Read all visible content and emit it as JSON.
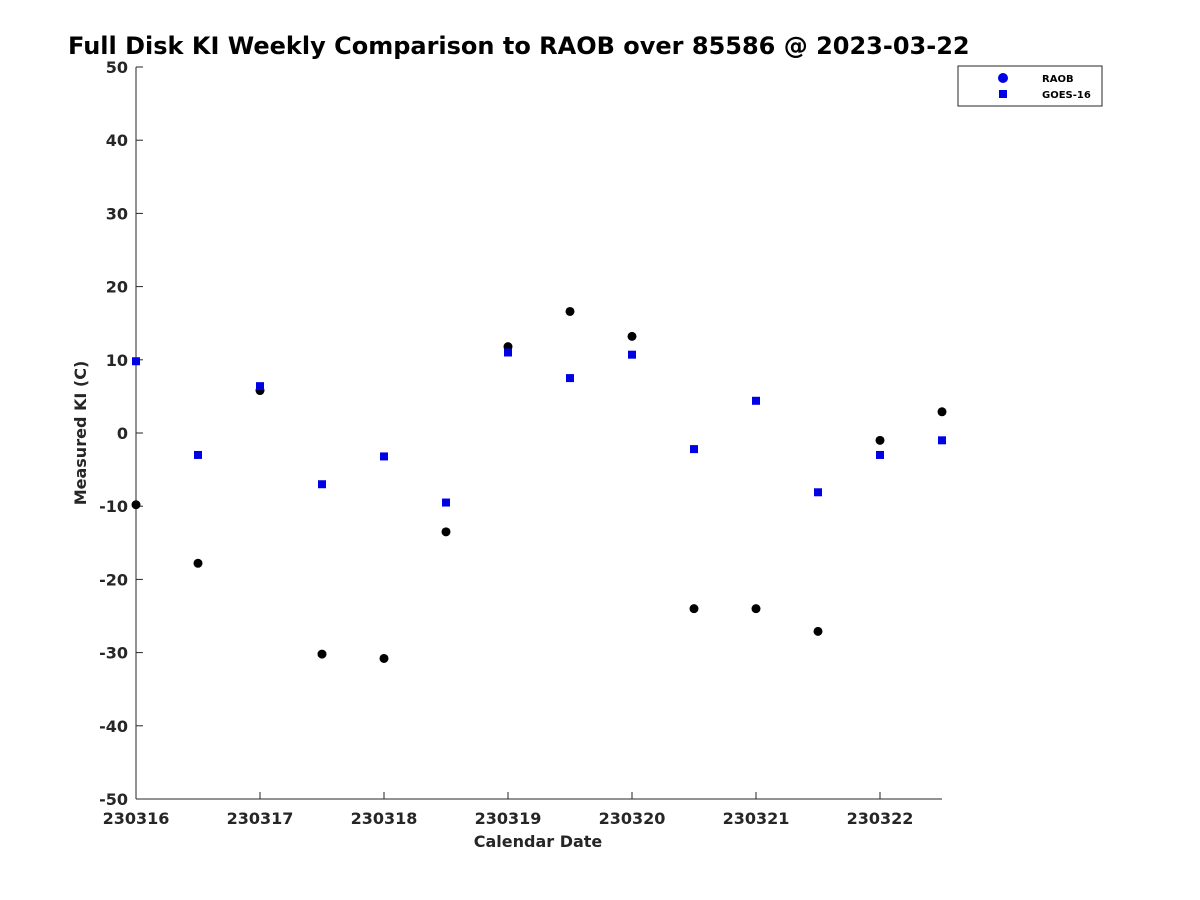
{
  "chart_data": {
    "type": "scatter",
    "title": "Full Disk KI Weekly Comparison to RAOB over 85586 @ 2023-03-22",
    "xlabel": "Calendar Date",
    "ylabel": "Measured KI (C)",
    "xlim": [
      0,
      6.5
    ],
    "ylim": [
      -50,
      50
    ],
    "x_ticks": [
      0,
      1,
      2,
      3,
      4,
      5,
      6
    ],
    "x_tick_labels": [
      "230316",
      "230317",
      "230318",
      "230319",
      "230320",
      "230321",
      "230322"
    ],
    "y_ticks": [
      -50,
      -40,
      -30,
      -20,
      -10,
      0,
      10,
      20,
      30,
      40,
      50
    ],
    "y_tick_labels": [
      "-50",
      "-40",
      "-30",
      "-20",
      "-10",
      "0",
      "10",
      "20",
      "30",
      "40",
      "50"
    ],
    "grid": false,
    "legend_position": "top-right",
    "series": [
      {
        "name": "RAOB",
        "marker": "circle",
        "color": "#000000",
        "legend_color": "#0000e6",
        "x": [
          0,
          0.5,
          1,
          1.5,
          2,
          2.5,
          3,
          3.5,
          4,
          4.5,
          5,
          5.5,
          6,
          6.5
        ],
        "y": [
          -9.8,
          -17.8,
          5.8,
          -30.2,
          -30.8,
          -13.5,
          11.8,
          16.6,
          13.2,
          -24,
          -24,
          -27.1,
          -1,
          2.9
        ]
      },
      {
        "name": "GOES-16",
        "marker": "square",
        "color": "#0000e6",
        "legend_color": "#0000e6",
        "x": [
          0,
          0.5,
          1,
          1.5,
          2,
          2.5,
          3,
          3.5,
          4,
          4.5,
          5,
          5.5,
          6,
          6.5
        ],
        "y": [
          9.8,
          -3,
          6.4,
          -7,
          -3.2,
          -9.5,
          11,
          7.5,
          10.7,
          -2.2,
          4.4,
          -8.1,
          -3,
          -1
        ]
      }
    ]
  }
}
